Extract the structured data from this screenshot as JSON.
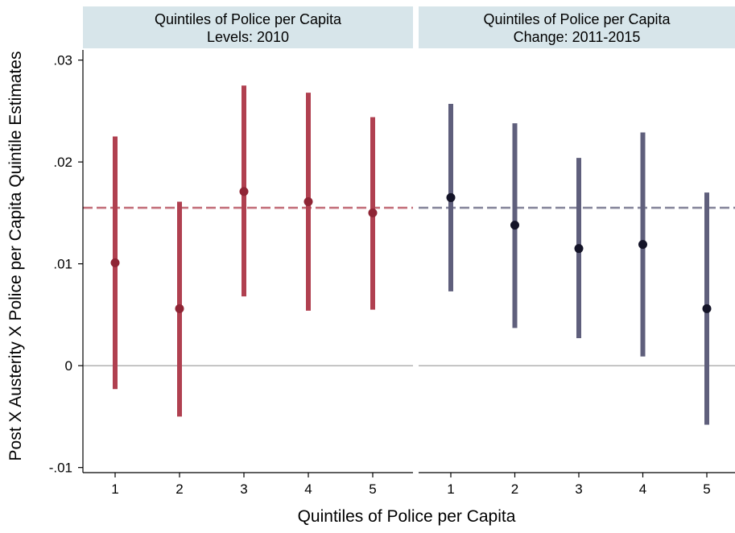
{
  "chart_data": {
    "type": "scatter",
    "subtype": "coefficient plot with confidence intervals, two facet panels",
    "xlabel": "Quintiles of Police per Capita",
    "ylabel": "Post X Austerity X Police per Capita Quintile Estimates",
    "ylim": [
      -0.0105,
      0.031
    ],
    "yticks": [
      {
        "value": -0.01,
        "label": "-.01"
      },
      {
        "value": 0,
        "label": "0"
      },
      {
        "value": 0.01,
        "label": ".01"
      },
      {
        "value": 0.02,
        "label": ".02"
      },
      {
        "value": 0.03,
        "label": ".03"
      }
    ],
    "xlim": [
      0.3,
      5.8
    ],
    "xticks": [
      "1",
      "2",
      "3",
      "4",
      "5"
    ],
    "grid": false,
    "panel_background": "#ffffff",
    "strip_background": "#d7e5ea",
    "zero_line_color": "#999999",
    "panels": [
      {
        "title_line1": "Quintiles of Police per Capita",
        "title_line2": "Levels: 2010",
        "color": "#b04050",
        "point_color": "#8f2535",
        "reference_line": 0.0155,
        "points": [
          {
            "x": 1,
            "estimate": 0.0101,
            "ci_low": -0.0023,
            "ci_high": 0.0225
          },
          {
            "x": 2,
            "estimate": 0.0056,
            "ci_low": -0.005,
            "ci_high": 0.0161
          },
          {
            "x": 3,
            "estimate": 0.0171,
            "ci_low": 0.0068,
            "ci_high": 0.0275
          },
          {
            "x": 4,
            "estimate": 0.0161,
            "ci_low": 0.0054,
            "ci_high": 0.0268
          },
          {
            "x": 5,
            "estimate": 0.015,
            "ci_low": 0.0055,
            "ci_high": 0.0244
          }
        ]
      },
      {
        "title_line1": "Quintiles of Police per Capita",
        "title_line2": "Change: 2011-2015",
        "color": "#5f5f7c",
        "point_color": "#141428",
        "reference_line": 0.0155,
        "points": [
          {
            "x": 1,
            "estimate": 0.0165,
            "ci_low": 0.0073,
            "ci_high": 0.0257
          },
          {
            "x": 2,
            "estimate": 0.0138,
            "ci_low": 0.0037,
            "ci_high": 0.0238
          },
          {
            "x": 3,
            "estimate": 0.0115,
            "ci_low": 0.0027,
            "ci_high": 0.0204
          },
          {
            "x": 4,
            "estimate": 0.0119,
            "ci_low": 0.0009,
            "ci_high": 0.0229
          },
          {
            "x": 5,
            "estimate": 0.0056,
            "ci_low": -0.0058,
            "ci_high": 0.017
          }
        ]
      }
    ]
  }
}
